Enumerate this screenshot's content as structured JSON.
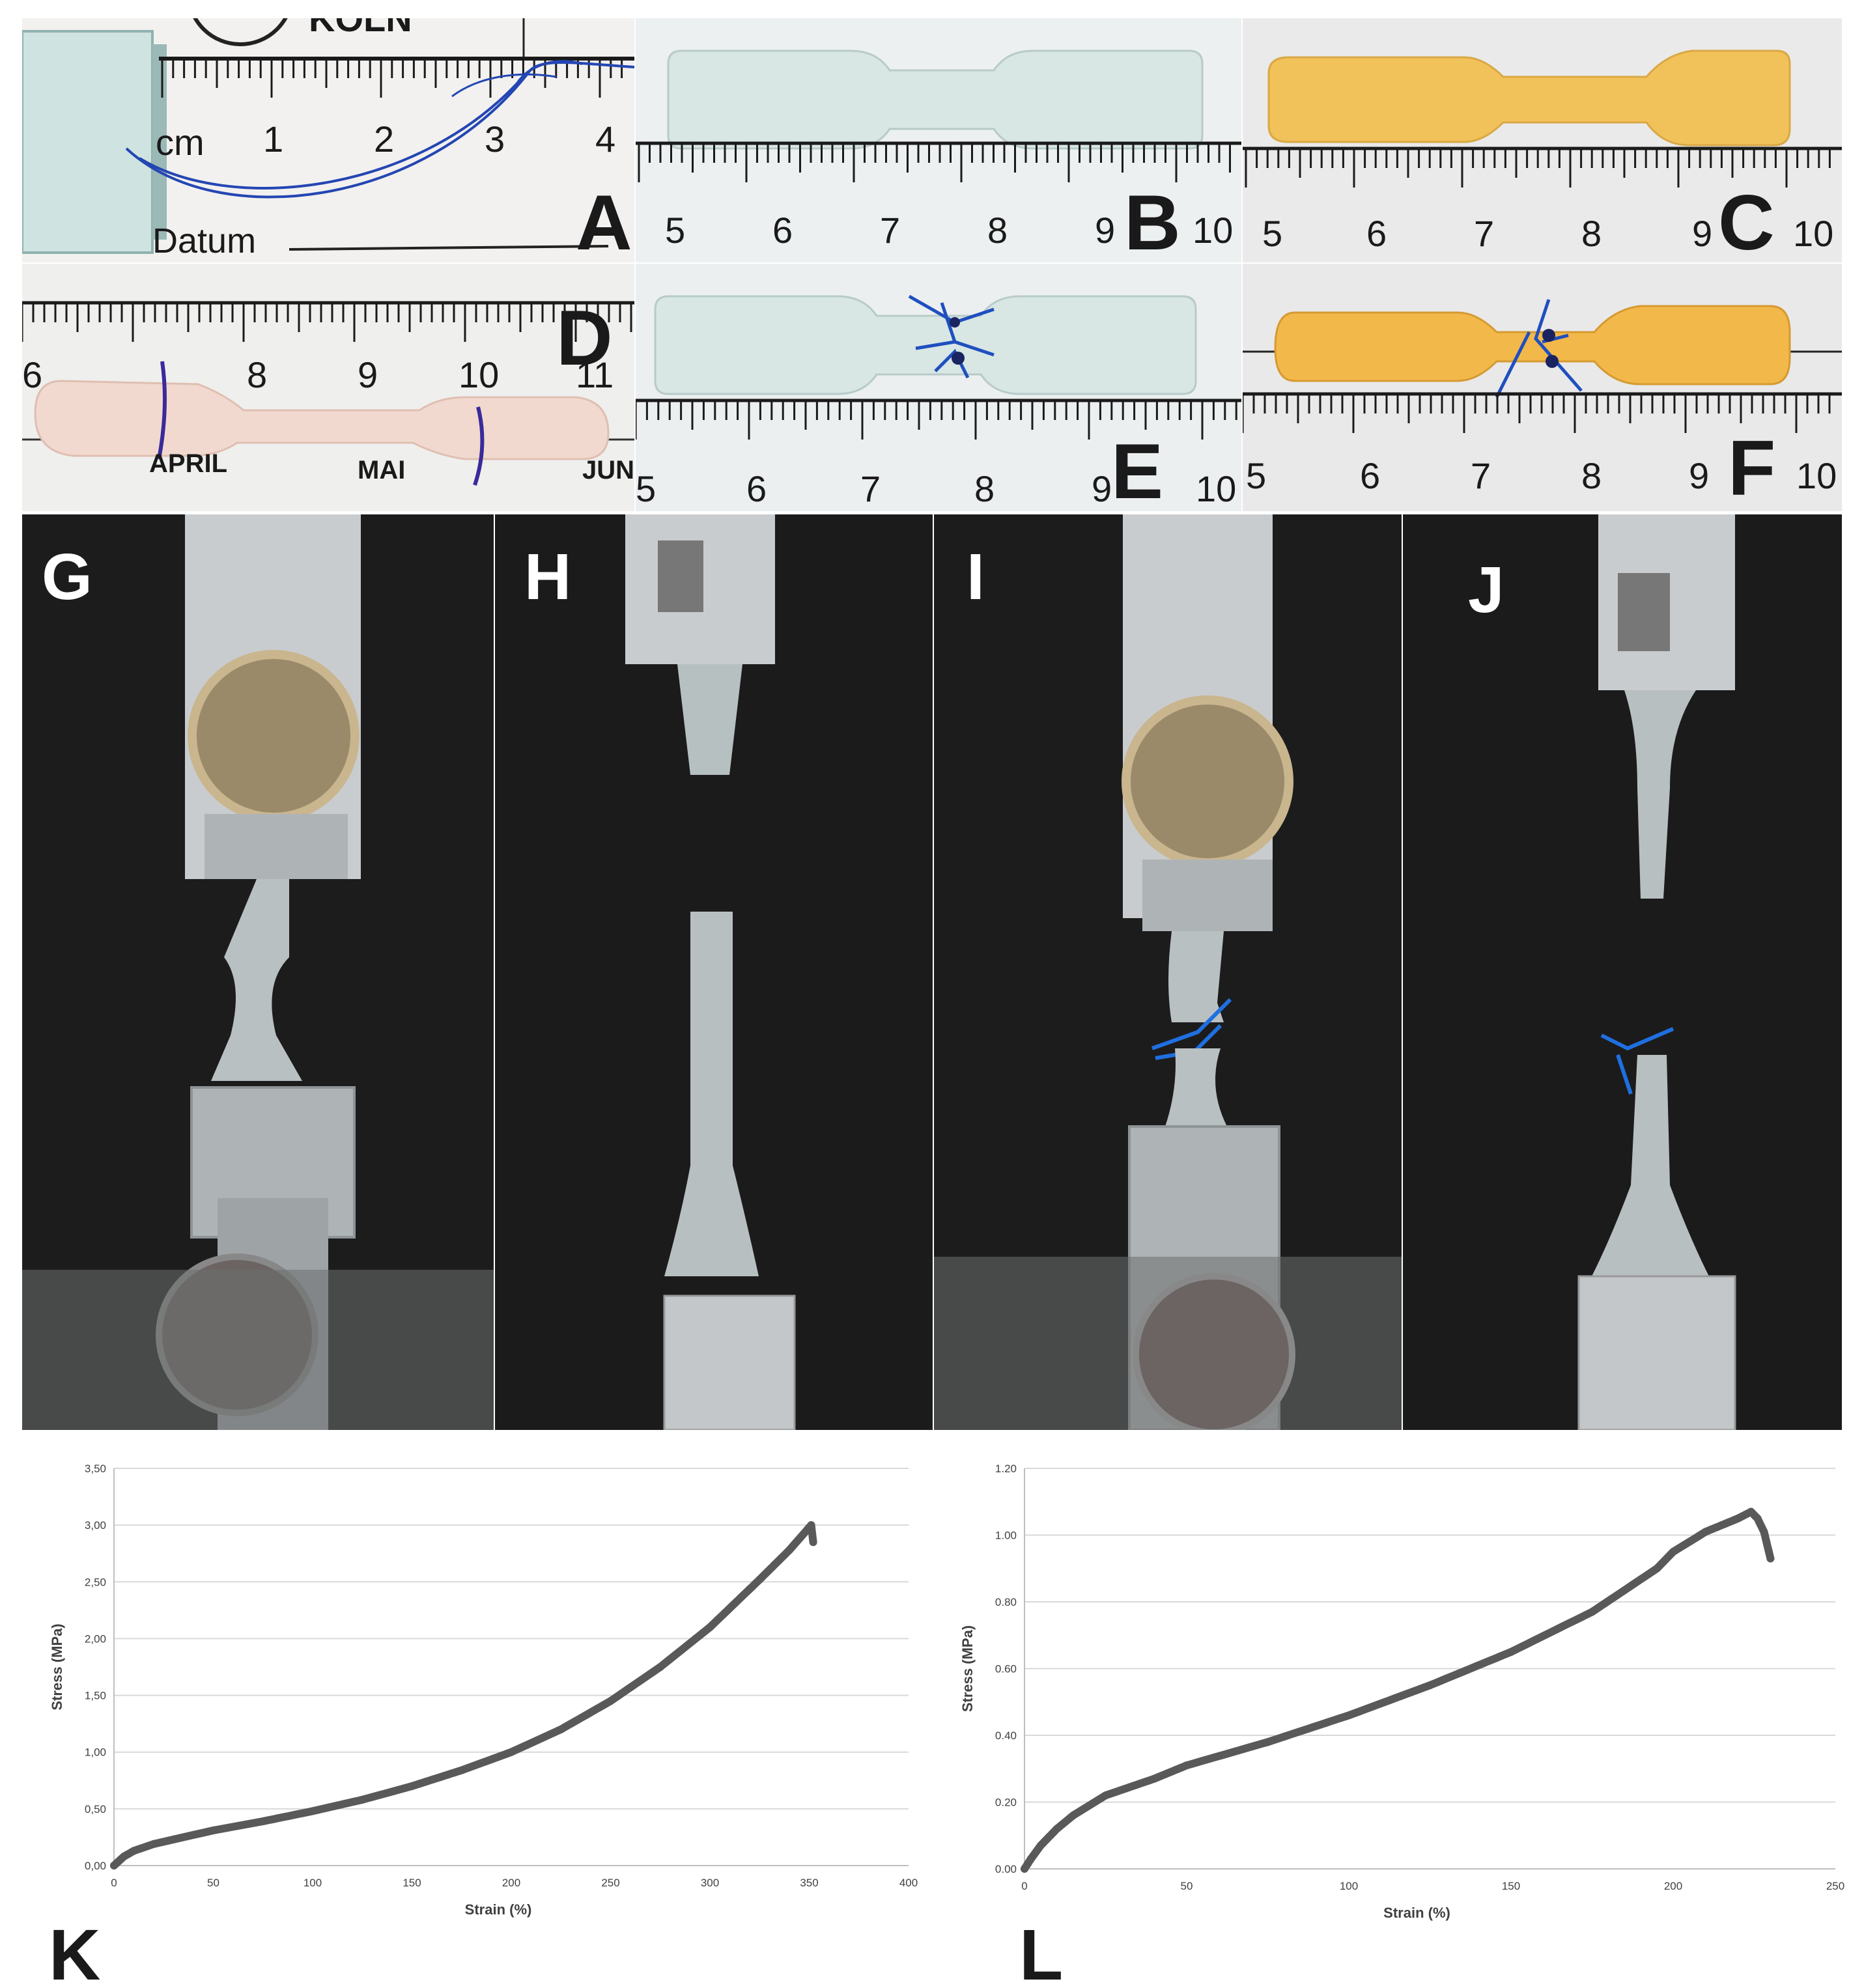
{
  "panels": {
    "A": {
      "label": "A",
      "ruler_unit": "cm",
      "ruler_numbers": [
        "1",
        "2",
        "3",
        "4"
      ],
      "paper_header": "KÖLN",
      "paper_text": "Datum"
    },
    "B": {
      "label": "B",
      "ruler_numbers": [
        "5",
        "6",
        "7",
        "8",
        "9",
        "10"
      ]
    },
    "C": {
      "label": "C",
      "ruler_numbers": [
        "5",
        "6",
        "7",
        "8",
        "9",
        "10"
      ]
    },
    "D": {
      "label": "D",
      "ruler_numbers": [
        "6",
        "8",
        "9",
        "10",
        "11"
      ],
      "calendar_text": [
        "APRIL",
        "MAI",
        "JUNI"
      ]
    },
    "E": {
      "label": "E",
      "ruler_numbers": [
        "5",
        "6",
        "7",
        "8",
        "9",
        "10"
      ]
    },
    "F": {
      "label": "F",
      "ruler_numbers": [
        "5",
        "6",
        "7",
        "8",
        "9",
        "10"
      ]
    },
    "G": {
      "label": "G"
    },
    "H": {
      "label": "H"
    },
    "I": {
      "label": "I"
    },
    "J": {
      "label": "J"
    }
  },
  "colors": {
    "curve": "#595959",
    "grid": "#d9d9d9",
    "photo_bg": "#1c1c1c",
    "suture_blue": "#1f4fbf",
    "specimen_yellow": "#f2c25a",
    "specimen_pink": "#f1d9cf",
    "specimen_clear": "#d7e3e2"
  },
  "chart_data": [
    {
      "panel": "K",
      "type": "scatter",
      "title": "",
      "xlabel": "Strain (%)",
      "ylabel": "Stress (MPa)",
      "xlim": [
        0,
        400
      ],
      "ylim": [
        0,
        3.5
      ],
      "xticks": [
        "0",
        "50",
        "100",
        "150",
        "200",
        "250",
        "300",
        "350",
        "400"
      ],
      "yticks": [
        "0,00",
        "0,50",
        "1,00",
        "1,50",
        "2,00",
        "2,50",
        "3,00",
        "3,50"
      ],
      "grid": true,
      "series": [
        {
          "x": [
            0,
            5,
            10,
            20,
            30,
            50,
            75,
            100,
            125,
            150,
            175,
            200,
            225,
            250,
            275,
            300,
            325,
            340,
            350,
            351,
            352
          ],
          "y": [
            0,
            0.08,
            0.13,
            0.19,
            0.23,
            0.31,
            0.39,
            0.48,
            0.58,
            0.7,
            0.84,
            1.0,
            1.2,
            1.45,
            1.75,
            2.1,
            2.52,
            2.78,
            2.98,
            3.0,
            2.85
          ]
        }
      ]
    },
    {
      "panel": "L",
      "type": "scatter",
      "title": "",
      "xlabel": "Strain (%)",
      "ylabel": "Stress (MPa)",
      "xlim": [
        0,
        250
      ],
      "ylim": [
        0,
        1.2
      ],
      "xticks": [
        "0",
        "50",
        "100",
        "150",
        "200",
        "250"
      ],
      "yticks": [
        "0.00",
        "0.20",
        "0.40",
        "0.60",
        "0.80",
        "1.00",
        "1.20"
      ],
      "grid": true,
      "series": [
        {
          "x": [
            0,
            2,
            5,
            10,
            15,
            25,
            40,
            50,
            75,
            100,
            125,
            150,
            175,
            195,
            200,
            210,
            220,
            224,
            226,
            228,
            230
          ],
          "y": [
            0,
            0.03,
            0.07,
            0.12,
            0.16,
            0.22,
            0.27,
            0.31,
            0.38,
            0.46,
            0.55,
            0.65,
            0.77,
            0.9,
            0.95,
            1.01,
            1.05,
            1.07,
            1.05,
            1.01,
            0.93
          ]
        }
      ]
    }
  ],
  "chart_labels": {
    "K": "K",
    "L": "L"
  }
}
